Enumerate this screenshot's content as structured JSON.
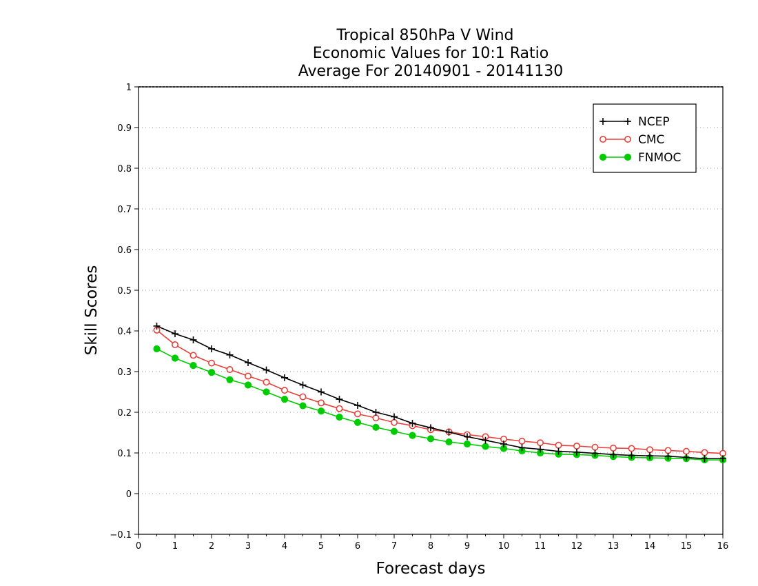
{
  "chart_data": {
    "type": "line",
    "title": [
      "Tropical 850hPa V Wind",
      "Economic Values for 10:1 Ratio",
      "Average For 20140901 - 20141130"
    ],
    "xlabel": "Forecast days",
    "ylabel": "Skill Scores",
    "xlim": [
      0,
      16
    ],
    "ylim": [
      -0.1,
      1
    ],
    "xticks": [
      "0",
      "1",
      "2",
      "3",
      "4",
      "5",
      "6",
      "7",
      "8",
      "9",
      "10",
      "11",
      "12",
      "13",
      "14",
      "15",
      "16"
    ],
    "yticks": [
      "−0.1",
      "0",
      "0.1",
      "0.2",
      "0.3",
      "0.4",
      "0.5",
      "0.6",
      "0.7",
      "0.8",
      "0.9",
      "1"
    ],
    "grid": "horizontal-dotted",
    "legend": "top-right",
    "x": [
      0.5,
      1,
      1.5,
      2,
      2.5,
      3,
      3.5,
      4,
      4.5,
      5,
      5.5,
      6,
      6.5,
      7,
      7.5,
      8,
      8.5,
      9,
      9.5,
      10,
      10.5,
      11,
      11.5,
      12,
      12.5,
      13,
      13.5,
      14,
      14.5,
      15,
      15.5,
      16
    ],
    "series": [
      {
        "name": "NCEP",
        "color": "#000000",
        "marker": "plus",
        "values": [
          0.412,
          0.393,
          0.378,
          0.356,
          0.341,
          0.322,
          0.304,
          0.285,
          0.267,
          0.25,
          0.232,
          0.217,
          0.2,
          0.189,
          0.173,
          0.162,
          0.151,
          0.14,
          0.131,
          0.122,
          0.113,
          0.109,
          0.104,
          0.102,
          0.099,
          0.096,
          0.094,
          0.093,
          0.092,
          0.089,
          0.086,
          0.086
        ]
      },
      {
        "name": "CMC",
        "color": "#e8403a",
        "marker": "open-circle",
        "values": [
          0.402,
          0.366,
          0.34,
          0.321,
          0.305,
          0.289,
          0.274,
          0.254,
          0.238,
          0.223,
          0.209,
          0.196,
          0.186,
          0.175,
          0.167,
          0.157,
          0.152,
          0.145,
          0.14,
          0.134,
          0.129,
          0.125,
          0.119,
          0.117,
          0.114,
          0.112,
          0.111,
          0.108,
          0.106,
          0.104,
          0.101,
          0.099
        ]
      },
      {
        "name": "FNMOC",
        "color": "#00cc00",
        "marker": "filled-circle",
        "values": [
          0.356,
          0.333,
          0.315,
          0.298,
          0.28,
          0.267,
          0.25,
          0.232,
          0.216,
          0.203,
          0.188,
          0.175,
          0.163,
          0.153,
          0.143,
          0.135,
          0.127,
          0.122,
          0.116,
          0.111,
          0.105,
          0.1,
          0.097,
          0.096,
          0.094,
          0.091,
          0.089,
          0.088,
          0.087,
          0.086,
          0.083,
          0.083
        ]
      }
    ]
  }
}
